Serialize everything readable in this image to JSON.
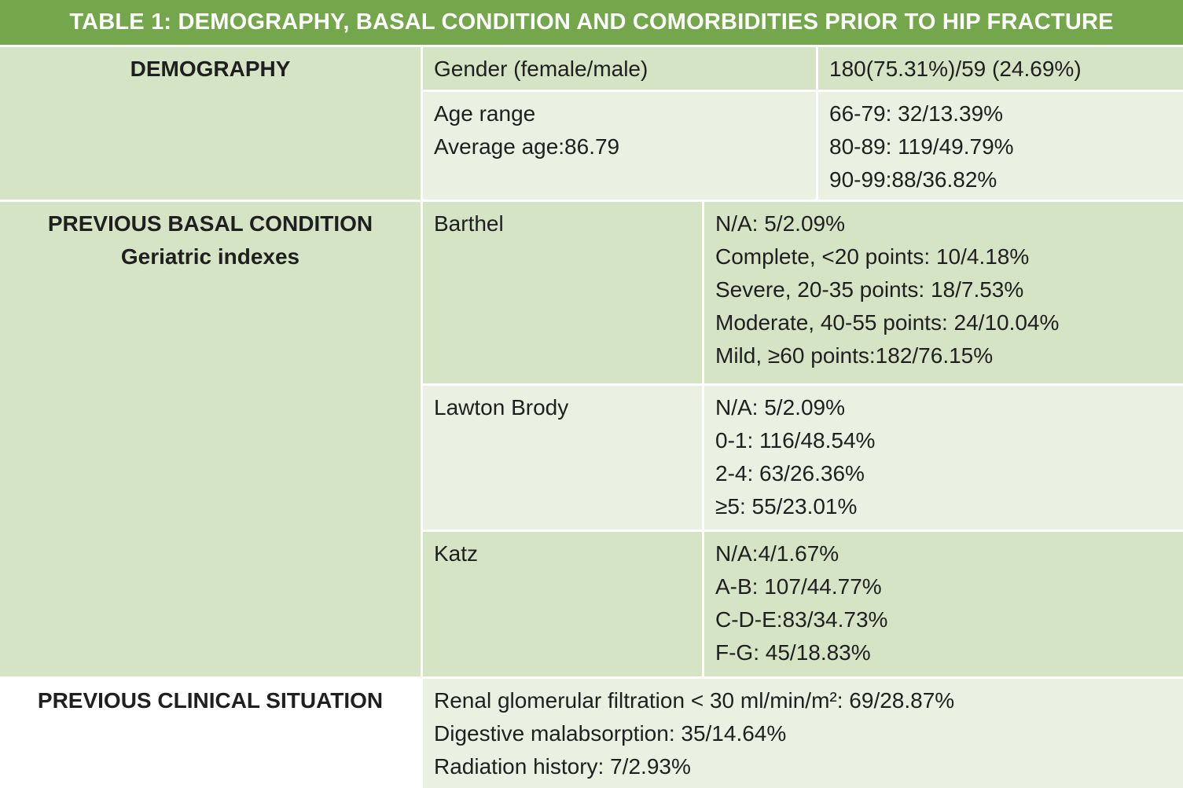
{
  "title": "TABLE 1: DEMOGRAPHY, BASAL CONDITION AND COMORBIDITIES PRIOR TO HIP FRACTURE",
  "colors": {
    "header_bg": "#74A64C",
    "band_dark": "#D6E4C6",
    "band_light": "#EAF1E2",
    "title_text": "#FFFFFF",
    "body_text": "#1F1F1F"
  },
  "demography": {
    "section_label": "DEMOGRAPHY",
    "gender": {
      "label": "Gender (female/male)",
      "value": "180(75.31%)/59 (24.69%)"
    },
    "age": {
      "label_lines": [
        "Age range",
        "Average age:86.79"
      ],
      "value_lines": [
        "66-79: 32/13.39%",
        "80-89: 119/49.79%",
        "90-99:88/36.82%"
      ]
    }
  },
  "basal": {
    "section_label_lines": [
      "PREVIOUS BASAL CONDITION",
      "Geriatric indexes"
    ],
    "barthel": {
      "label": "Barthel",
      "value_lines": [
        "N/A: 5/2.09%",
        "Complete, <20 points: 10/4.18%",
        "Severe, 20-35 points: 18/7.53%",
        "Moderate, 40-55 points: 24/10.04%",
        "Mild, ≥60 points:182/76.15%"
      ]
    },
    "lawton": {
      "label": "Lawton Brody",
      "value_lines": [
        "N/A: 5/2.09%",
        "0-1: 116/48.54%",
        "2-4: 63/26.36%",
        "≥5: 55/23.01%"
      ]
    },
    "katz": {
      "label": "Katz",
      "value_lines": [
        "N/A:4/1.67%",
        "A-B: 107/44.77%",
        "C-D-E:83/34.73%",
        "F-G: 45/18.83%"
      ]
    }
  },
  "clinical": {
    "section_label": "PREVIOUS CLINICAL SITUATION",
    "value_lines": [
      "Renal glomerular filtration < 30 ml/min/m²: 69/28.87%",
      "Digestive malabsorption: 35/14.64%",
      "Radiation history: 7/2.93%"
    ]
  }
}
